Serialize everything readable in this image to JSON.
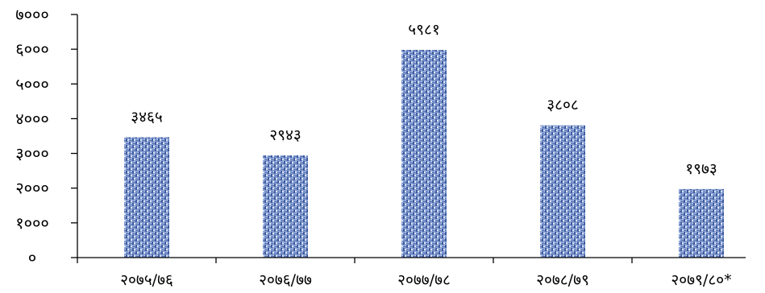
{
  "chart_data": {
    "type": "bar",
    "categories": [
      "२०७५/७६",
      "२०७६/७७",
      "२०७७/७८",
      "२०७८/७९",
      "२०७९/८०*"
    ],
    "values": [
      3465,
      2943,
      5981,
      3808,
      1973
    ],
    "value_labels": [
      "३४६५",
      "२९४३",
      "५९८१",
      "३८०८",
      "१९७३"
    ],
    "y_ticks": [
      0,
      1000,
      2000,
      3000,
      4000,
      5000,
      6000,
      7000
    ],
    "y_tick_labels": [
      "०",
      "१०००",
      "२०००",
      "३०००",
      "४०००",
      "५०००",
      "६०००",
      "७०००"
    ],
    "ylim": [
      0,
      7000
    ],
    "grid": false,
    "show_legend": false,
    "bar_color": "#8aa2d6",
    "bar_texture_dark": "#3f5c9e",
    "bar_texture_light": "#dfe7f6"
  }
}
